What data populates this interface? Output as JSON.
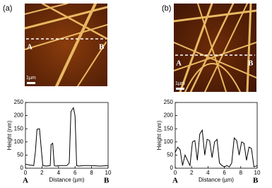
{
  "panels": [
    {
      "label": "(a)",
      "image": {
        "point_a": "A",
        "point_b": "B",
        "scale_label": "1µm"
      },
      "chart_data": {
        "type": "line",
        "xlabel": "Distance (µm)",
        "ylabel": "Height (nm)",
        "x": [
          0,
          0.5,
          1.0,
          1.2,
          1.4,
          1.7,
          1.9,
          2.1,
          2.5,
          3.0,
          3.1,
          3.3,
          3.5,
          3.7,
          4.0,
          5.0,
          5.3,
          5.5,
          5.8,
          6.0,
          6.2,
          6.5,
          7,
          8,
          9,
          10
        ],
        "values": [
          15,
          12,
          10,
          60,
          148,
          150,
          80,
          10,
          8,
          10,
          90,
          95,
          10,
          8,
          10,
          10,
          20,
          215,
          230,
          200,
          10,
          8,
          10,
          10,
          8,
          10
        ],
        "color": "#000000",
        "xlim": [
          0,
          10
        ],
        "ylim": [
          0,
          250
        ],
        "xticks": [
          0,
          2,
          4,
          6,
          8,
          10
        ],
        "yticks": [
          0,
          50,
          100,
          150,
          200,
          250
        ],
        "start_label": "A",
        "end_label": "B"
      }
    },
    {
      "label": "(b)",
      "image": {
        "point_a": "A",
        "point_b": "B",
        "scale_label": "1µm"
      },
      "chart_data": {
        "type": "line",
        "xlabel": "Distance (µm)",
        "ylabel": "Height (nm)",
        "x": [
          0,
          0.3,
          0.6,
          0.9,
          1.2,
          1.5,
          1.8,
          2.1,
          2.4,
          2.7,
          3.0,
          3.3,
          3.6,
          3.9,
          4.2,
          4.5,
          4.8,
          5.1,
          5.4,
          5.7,
          6.0,
          6.3,
          6.6,
          6.9,
          7.2,
          7.5,
          7.8,
          8.1,
          8.4,
          8.7,
          9.0,
          9.3,
          9.6,
          10
        ],
        "values": [
          60,
          80,
          70,
          10,
          50,
          30,
          10,
          100,
          105,
          30,
          130,
          145,
          50,
          110,
          105,
          40,
          100,
          110,
          20,
          10,
          5,
          10,
          5,
          20,
          115,
          105,
          50,
          100,
          95,
          30,
          80,
          75,
          5,
          10
        ],
        "color": "#000000",
        "xlim": [
          0,
          10
        ],
        "ylim": [
          0,
          250
        ],
        "xticks": [
          0,
          2,
          4,
          6,
          8,
          10
        ],
        "yticks": [
          0,
          50,
          100,
          150,
          200,
          250
        ],
        "start_label": "A",
        "end_label": "B"
      }
    }
  ]
}
